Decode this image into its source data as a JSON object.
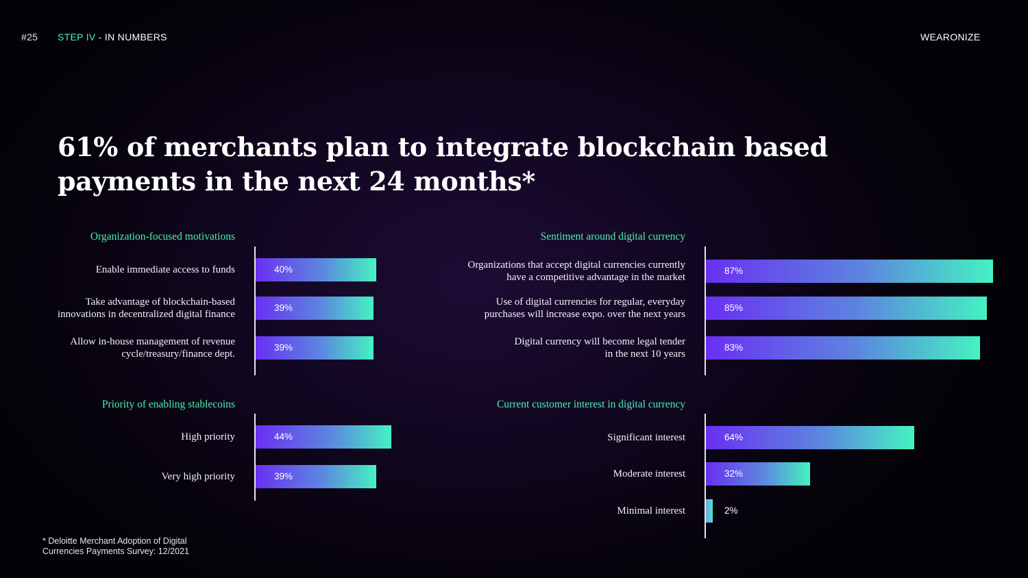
{
  "header": {
    "page_number": "#25",
    "step_label": "STEP IV",
    "step_separator": " - ",
    "section_label": "IN NUMBERS",
    "brand": "WEARONIZE"
  },
  "headline": "61% of merchants plan to integrate blockchain based payments in the next 24 months*",
  "footnote": "* Deloitte Merchant Adoption of Digital\nCurrencies Payments Survey: 12/2021",
  "colors": {
    "accent_green": "#4df0b2",
    "bar_gradient_start": "#6a2ff2",
    "bar_gradient_end": "#45f2c2",
    "background": "#0b0514"
  },
  "chart_data": [
    {
      "type": "bar",
      "orientation": "horizontal",
      "title": "Organization-focused motivations",
      "categories": [
        "Enable immediate access to funds",
        "Take advantage of blockchain-based\ninnovations in decentralized digital finance",
        "Allow in-house management of revenue\ncycle/treasury/finance dept."
      ],
      "values": [
        40,
        39,
        39
      ],
      "value_labels": [
        "40%",
        "39%",
        "39%"
      ],
      "unit": "%"
    },
    {
      "type": "bar",
      "orientation": "horizontal",
      "title": "Sentiment around digital currency",
      "categories": [
        "Organizations that accept digital currencies currently\nhave a competitive advantage in the market",
        "Use of digital currencies for regular, everyday\npurchases will increase expo. over the next years",
        "Digital currency will become legal tender\nin the next 10 years"
      ],
      "values": [
        87,
        85,
        83
      ],
      "value_labels": [
        "87%",
        "85%",
        "83%"
      ],
      "unit": "%"
    },
    {
      "type": "bar",
      "orientation": "horizontal",
      "title": "Priority of enabling stablecoins",
      "categories": [
        "High priority",
        "Very high priority"
      ],
      "values": [
        44,
        39
      ],
      "value_labels": [
        "44%",
        "39%"
      ],
      "unit": "%"
    },
    {
      "type": "bar",
      "orientation": "horizontal",
      "title": "Current customer interest in digital currency",
      "categories": [
        "Significant interest",
        "Moderate interest",
        "Minimal interest"
      ],
      "values": [
        64,
        32,
        2
      ],
      "value_labels": [
        "64%",
        "32%",
        "2%"
      ],
      "unit": "%"
    }
  ]
}
